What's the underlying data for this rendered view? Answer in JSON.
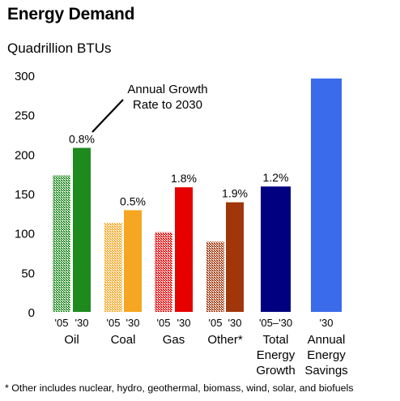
{
  "title": "Energy Demand",
  "subtitle": "Quadrillion BTUs",
  "footnote": "* Other includes nuclear, hydro, geothermal, biomass, wind, solar, and biofuels",
  "annotation": [
    "Annual Growth",
    "Rate to 2030"
  ],
  "chart_data": {
    "type": "bar",
    "ylim": [
      0,
      300
    ],
    "yticks": [
      0,
      50,
      100,
      150,
      200,
      250,
      300
    ],
    "grid": false,
    "groups": [
      {
        "label": [
          "Oil"
        ],
        "bars": [
          {
            "year": "'05",
            "value": 173,
            "color": "#1e8a1e",
            "pattern": true
          },
          {
            "year": "'30",
            "value": 208,
            "color": "#1e8a1e",
            "pattern": false
          }
        ],
        "growth": "0.8%"
      },
      {
        "label": [
          "Coal"
        ],
        "bars": [
          {
            "year": "'05",
            "value": 113,
            "color": "#f5a623",
            "pattern": true
          },
          {
            "year": "'30",
            "value": 129,
            "color": "#f5a623",
            "pattern": false
          }
        ],
        "growth": "0.5%"
      },
      {
        "label": [
          "Gas"
        ],
        "bars": [
          {
            "year": "'05",
            "value": 101,
            "color": "#e60000",
            "pattern": true
          },
          {
            "year": "'30",
            "value": 158,
            "color": "#e60000",
            "pattern": false
          }
        ],
        "growth": "1.8%"
      },
      {
        "label": [
          "Other*"
        ],
        "bars": [
          {
            "year": "'05",
            "value": 89,
            "color": "#a0360a",
            "pattern": true
          },
          {
            "year": "'30",
            "value": 139,
            "color": "#a0360a",
            "pattern": false
          }
        ],
        "growth": "1.9%"
      },
      {
        "label": [
          "Total",
          "Energy",
          "Growth"
        ],
        "bars": [
          {
            "year": "'05–'30",
            "value": 159,
            "color": "#000080",
            "pattern": false
          }
        ],
        "growth": "1.2%"
      },
      {
        "label": [
          "Annual",
          "Energy",
          "Savings"
        ],
        "bars": [
          {
            "year": "'30",
            "value": 296,
            "color": "#3a6bea",
            "pattern": false
          }
        ],
        "growth": ""
      }
    ]
  }
}
